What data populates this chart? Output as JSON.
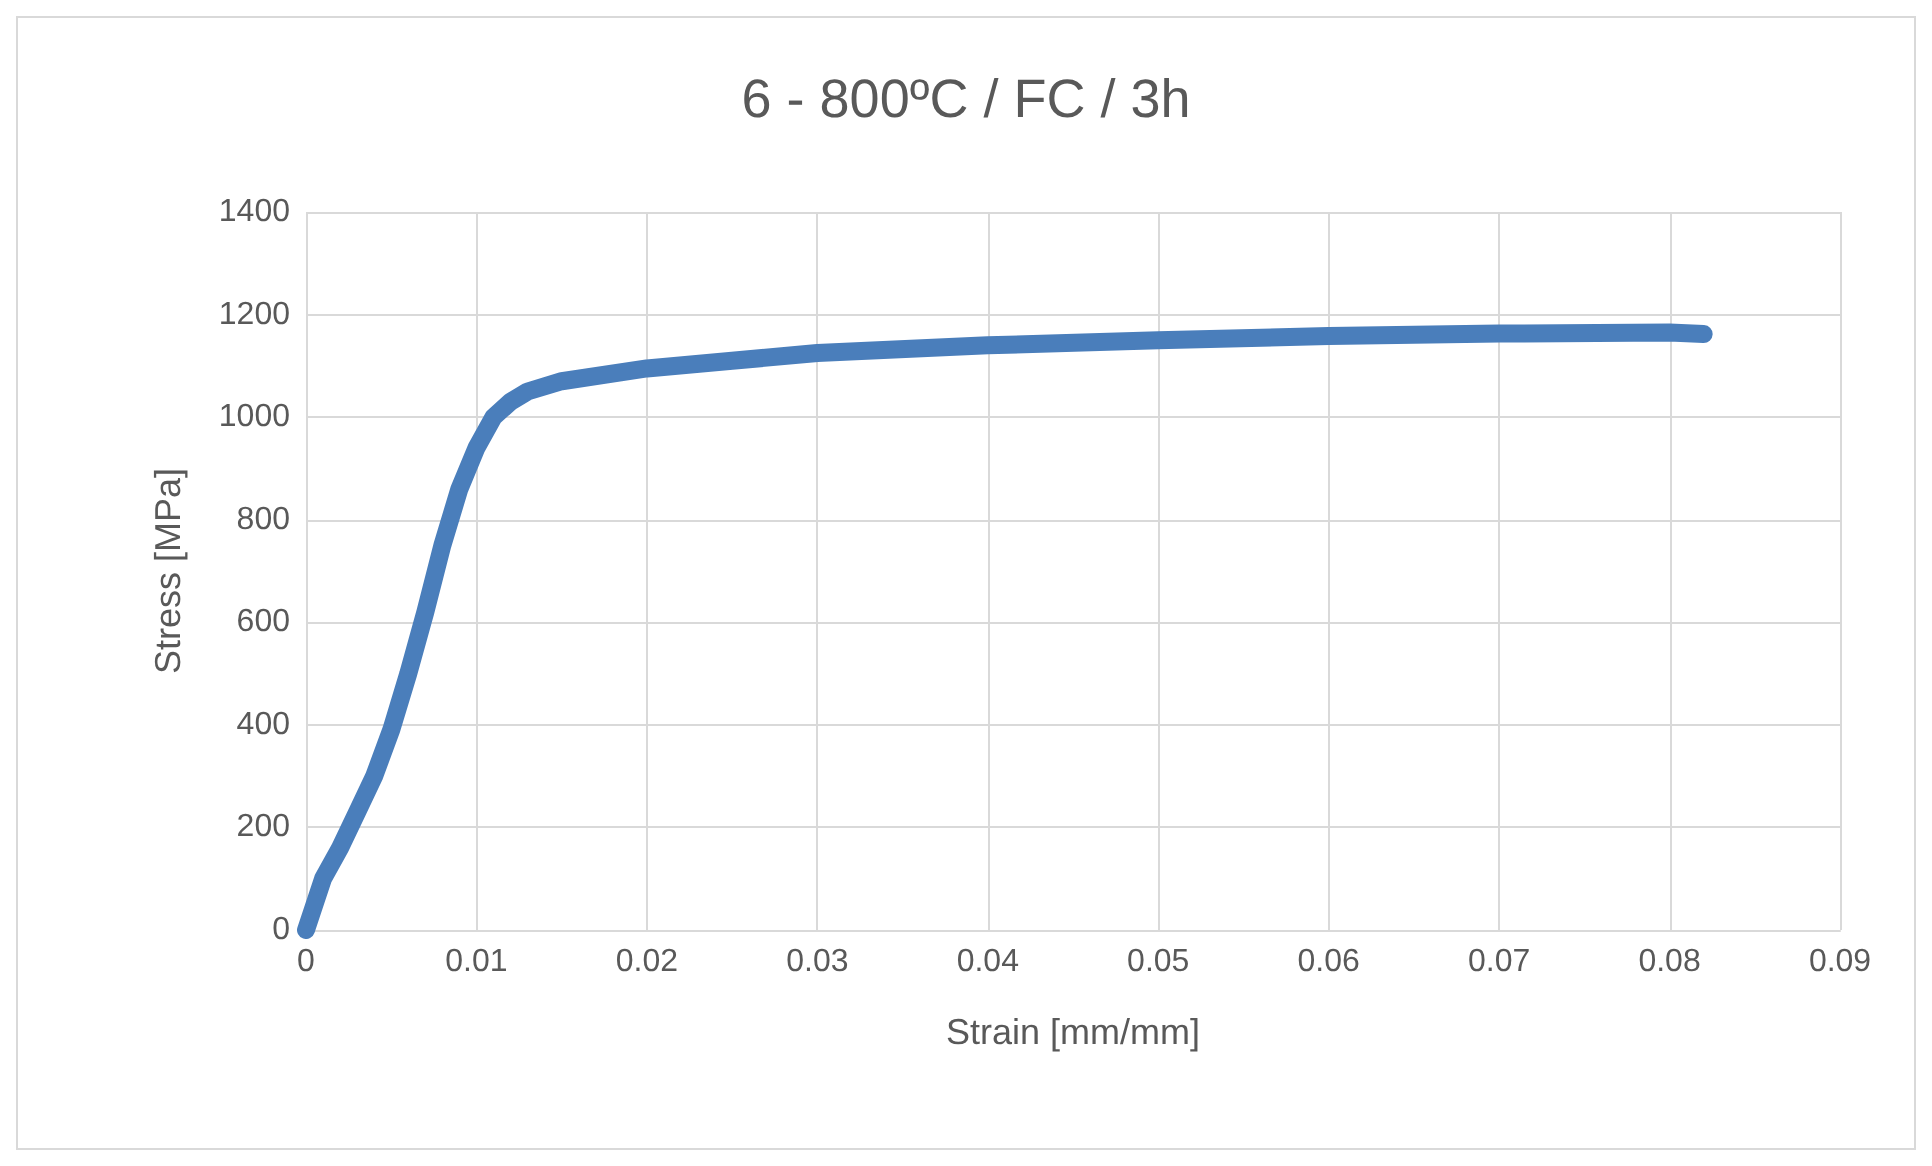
{
  "chart_data": {
    "type": "line",
    "title": "6 - 800ºC / FC / 3h",
    "xlabel": "Strain [mm/mm]",
    "ylabel": "Stress [MPa]",
    "x": [
      0,
      0.001,
      0.002,
      0.003,
      0.004,
      0.005,
      0.006,
      0.007,
      0.008,
      0.009,
      0.01,
      0.011,
      0.012,
      0.013,
      0.015,
      0.02,
      0.025,
      0.03,
      0.04,
      0.05,
      0.06,
      0.07,
      0.08,
      0.082
    ],
    "series": [
      {
        "color": "#4a7ebb",
        "values": [
          0,
          100,
          160,
          230,
          300,
          390,
          500,
          620,
          750,
          860,
          940,
          1000,
          1030,
          1050,
          1070,
          1095,
          1110,
          1125,
          1140,
          1150,
          1158,
          1163,
          1165,
          1162
        ]
      }
    ],
    "xlim": [
      0,
      0.09
    ],
    "xticks": [
      0,
      0.01,
      0.02,
      0.03,
      0.04,
      0.05,
      0.06,
      0.07,
      0.08,
      0.09
    ],
    "ylim": [
      0,
      1400
    ],
    "yticks": [
      0,
      200,
      400,
      600,
      800,
      1000,
      1200,
      1400
    ],
    "grid": true,
    "line_style": "solid"
  }
}
